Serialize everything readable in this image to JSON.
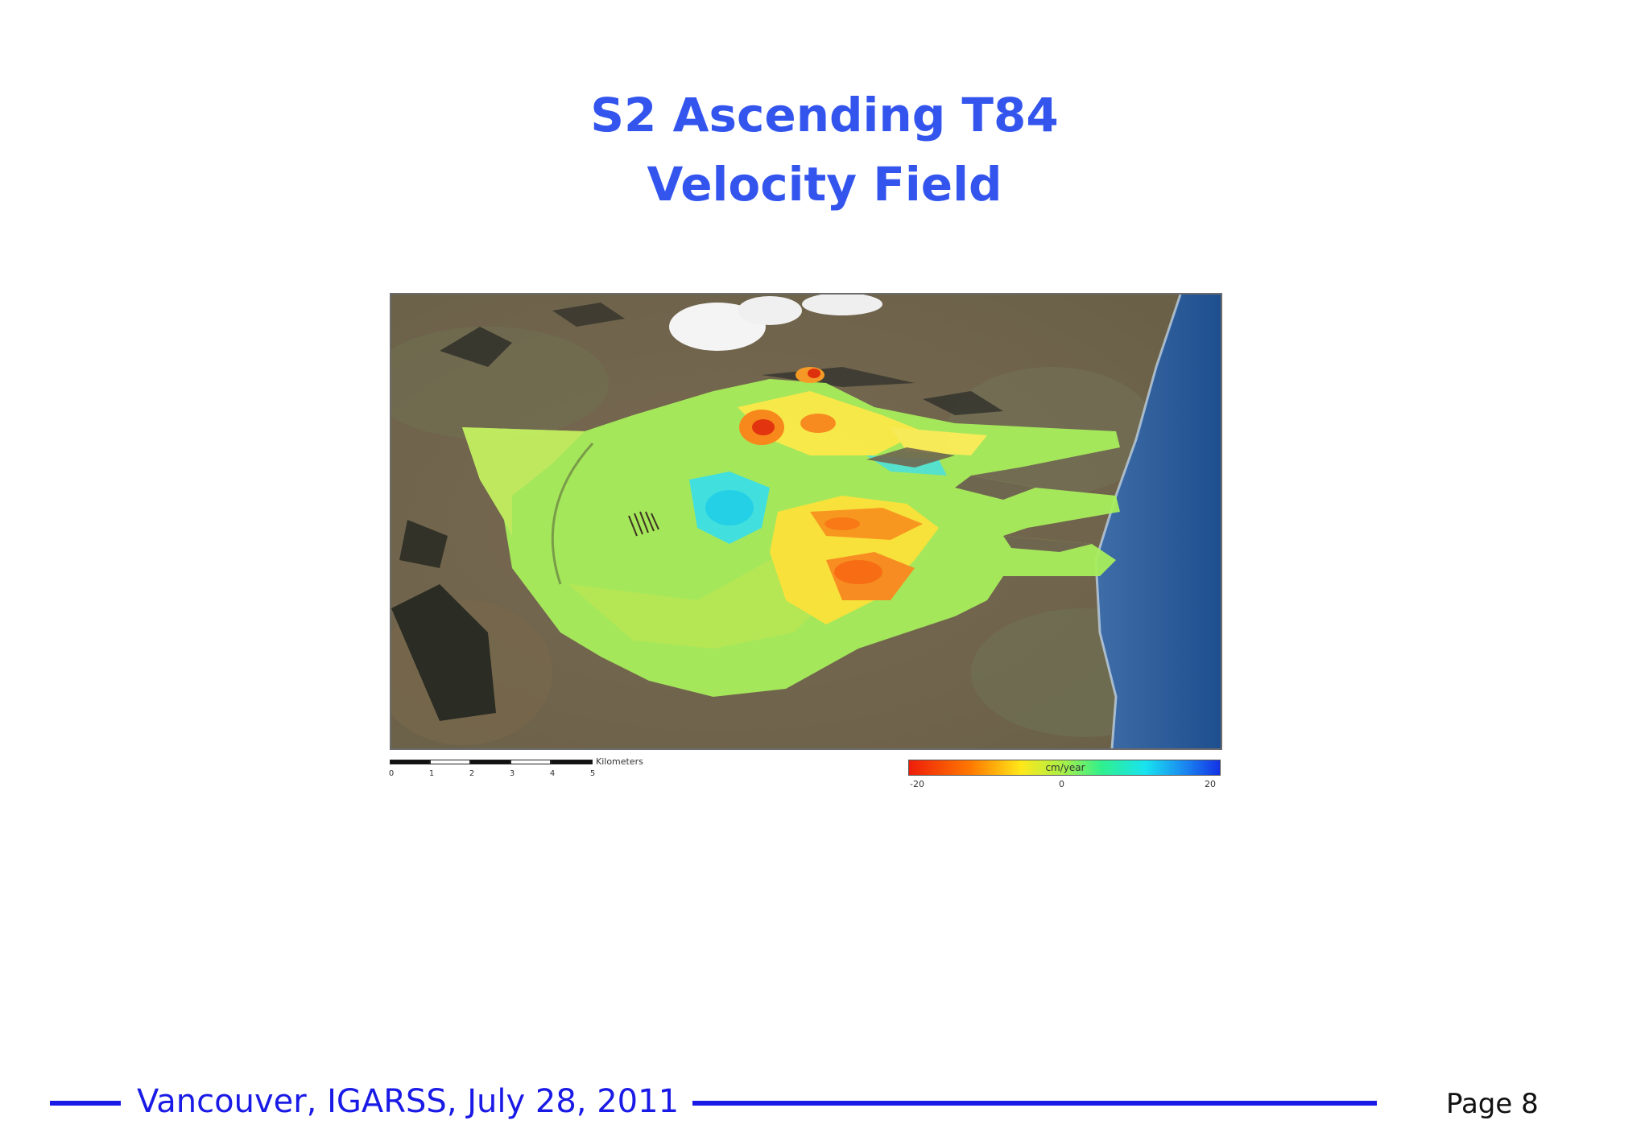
{
  "slide": {
    "title_line1": "S2 Ascending T84",
    "title_line2": "Velocity Field",
    "footer_text": "Vancouver, IGARSS, July 28, 2011",
    "page_label": "Page 8",
    "accent_color": "#3355ee",
    "footer_color": "#1a1ae6"
  },
  "map": {
    "type": "InSAR velocity field overlaid on satellite imagery",
    "scale_bar": {
      "unit": "Kilometers",
      "ticks": [
        "0",
        "1",
        "2",
        "3",
        "4",
        "5"
      ]
    },
    "color_legend": {
      "unit": "cm/year",
      "min_label": "-20",
      "mid_label": "0",
      "max_label": "20",
      "colors": [
        "#ee1d0a",
        "#ff7a00",
        "#ffe81a",
        "#a5f04a",
        "#2ff08e",
        "#18e3f0",
        "#1a8cf0",
        "#1432e6"
      ]
    }
  }
}
